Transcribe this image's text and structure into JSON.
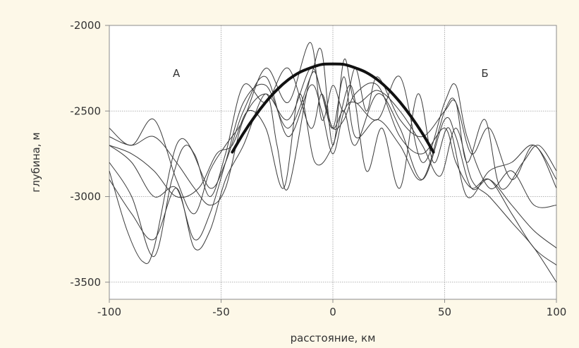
{
  "chart_data": {
    "type": "line",
    "title": "",
    "xlabel": "расстояние, км",
    "ylabel": "глубина, м",
    "xlim": [
      -100,
      100
    ],
    "ylim": [
      -3600,
      -2000
    ],
    "x_ticks": [
      -100,
      -50,
      0,
      50,
      100
    ],
    "y_ticks": [
      -2000,
      -2500,
      -3000,
      -3500
    ],
    "x_tick_labels": [
      "-100",
      "-50",
      "0",
      "50",
      "100"
    ],
    "y_tick_labels": [
      "-2000",
      "-2500",
      "-3000",
      "-3500"
    ],
    "grid": true,
    "annotations": [
      {
        "text": "А",
        "x": -70,
        "y": -2300
      },
      {
        "text": "Б",
        "x": 68,
        "y": -2300
      }
    ],
    "series": [
      {
        "x": [
          -100,
          -90,
          -80,
          -70,
          -62,
          -55,
          -48,
          -40,
          -30,
          -20,
          -10,
          -5,
          0,
          5,
          10,
          20,
          30,
          40,
          48,
          55,
          62,
          70,
          80,
          90,
          100
        ],
        "values": [
          -2700,
          -2800,
          -3000,
          -2950,
          -3250,
          -3100,
          -2800,
          -2450,
          -2350,
          -2600,
          -2300,
          -2150,
          -2700,
          -2200,
          -2450,
          -2380,
          -2500,
          -2700,
          -2880,
          -2600,
          -2900,
          -3000,
          -3150,
          -3300,
          -3500
        ]
      },
      {
        "x": [
          -100,
          -92,
          -85,
          -80,
          -70,
          -62,
          -55,
          -48,
          -40,
          -30,
          -20,
          -10,
          -5,
          0,
          5,
          10,
          20,
          30,
          40,
          50,
          55,
          62,
          70,
          80,
          90,
          100
        ],
        "values": [
          -2850,
          -3200,
          -3380,
          -3300,
          -2700,
          -2750,
          -3000,
          -2750,
          -2350,
          -2450,
          -2250,
          -2600,
          -2400,
          -2600,
          -2500,
          -2700,
          -2400,
          -2600,
          -2900,
          -2550,
          -2650,
          -2950,
          -2900,
          -3050,
          -3200,
          -3300
        ]
      },
      {
        "x": [
          -100,
          -90,
          -80,
          -70,
          -62,
          -55,
          -48,
          -40,
          -30,
          -20,
          -10,
          -5,
          0,
          5,
          10,
          15,
          20,
          30,
          40,
          50,
          55,
          62,
          70,
          80,
          90,
          100
        ],
        "values": [
          -2600,
          -2700,
          -2550,
          -2900,
          -3100,
          -2850,
          -2700,
          -2550,
          -2250,
          -2450,
          -2100,
          -2550,
          -2350,
          -2500,
          -2250,
          -2500,
          -2300,
          -2550,
          -2650,
          -2500,
          -2450,
          -2750,
          -2600,
          -2900,
          -2700,
          -2950
        ]
      },
      {
        "x": [
          -100,
          -90,
          -80,
          -72,
          -65,
          -55,
          -48,
          -40,
          -30,
          -20,
          -10,
          -5,
          0,
          5,
          10,
          20,
          30,
          40,
          50,
          55,
          60,
          70,
          80,
          90,
          100
        ],
        "values": [
          -2800,
          -3000,
          -3350,
          -2900,
          -2700,
          -2950,
          -2800,
          -2500,
          -2300,
          -2650,
          -2350,
          -2500,
          -2750,
          -2500,
          -2450,
          -2550,
          -2300,
          -2800,
          -2450,
          -2350,
          -2650,
          -2950,
          -2850,
          -3050,
          -3050
        ]
      },
      {
        "x": [
          -100,
          -90,
          -80,
          -70,
          -62,
          -55,
          -48,
          -40,
          -30,
          -20,
          -10,
          -5,
          0,
          5,
          10,
          20,
          30,
          40,
          50,
          55,
          60,
          68,
          75,
          85,
          92,
          100
        ],
        "values": [
          -2650,
          -2700,
          -2650,
          -2800,
          -2950,
          -3050,
          -2950,
          -2550,
          -2400,
          -2550,
          -2250,
          -2400,
          -2600,
          -2300,
          -2650,
          -2550,
          -2700,
          -2900,
          -2500,
          -2450,
          -2800,
          -2550,
          -2950,
          -2800,
          -2700,
          -2850
        ]
      },
      {
        "x": [
          -100,
          -90,
          -80,
          -70,
          -60,
          -52,
          -45,
          -38,
          -30,
          -22,
          -15,
          -8,
          0,
          8,
          15,
          22,
          30,
          38,
          45,
          52,
          60,
          70,
          80,
          90,
          100
        ],
        "values": [
          -2700,
          -2750,
          -2850,
          -3000,
          -2950,
          -2750,
          -2700,
          -2500,
          -2600,
          -2950,
          -2400,
          -2800,
          -2700,
          -2350,
          -2850,
          -2600,
          -2950,
          -2400,
          -2800,
          -2600,
          -3000,
          -2850,
          -2800,
          -2700,
          -2900
        ]
      },
      {
        "x": [
          -100,
          -90,
          -80,
          -70,
          -62,
          -55,
          -48,
          -40,
          -30,
          -25,
          -20,
          -10,
          -5,
          0,
          5,
          10,
          20,
          30,
          40,
          50,
          55,
          62,
          70,
          80,
          90,
          100
        ],
        "values": [
          -2900,
          -3100,
          -3250,
          -2950,
          -3300,
          -3200,
          -2900,
          -2700,
          -2400,
          -2700,
          -2950,
          -2300,
          -2400,
          -2600,
          -2550,
          -2400,
          -2350,
          -2650,
          -2750,
          -2600,
          -2800,
          -2950,
          -2900,
          -3100,
          -3300,
          -3400
        ]
      }
    ],
    "fit_curve": {
      "x": [
        -45,
        -40,
        -35,
        -30,
        -25,
        -20,
        -15,
        -10,
        -5,
        0,
        5,
        10,
        15,
        20,
        25,
        30,
        35,
        40,
        45
      ],
      "values": [
        -2740,
        -2630,
        -2533,
        -2448,
        -2376,
        -2318,
        -2275,
        -2248,
        -2228,
        -2225,
        -2228,
        -2248,
        -2275,
        -2318,
        -2376,
        -2448,
        -2533,
        -2630,
        -2740
      ]
    }
  }
}
